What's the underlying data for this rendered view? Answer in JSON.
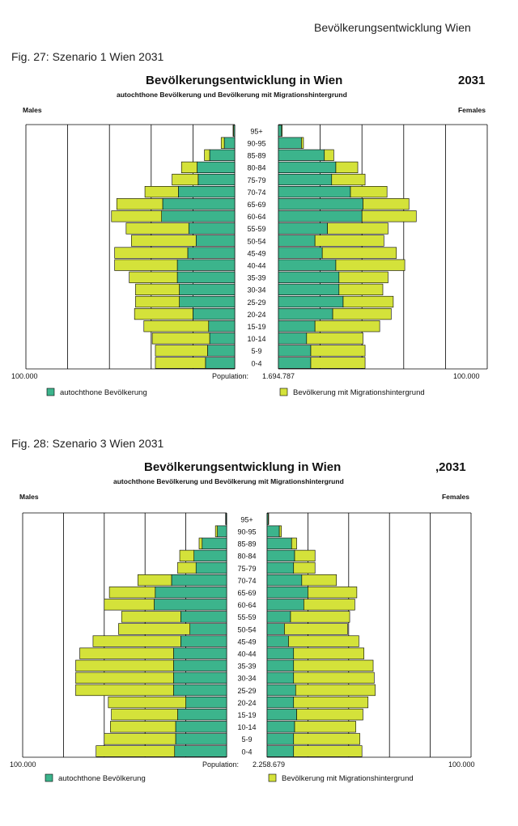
{
  "running_header": "Bevölkerungsentwicklung Wien",
  "colors": {
    "autochthon": "#3cb48c",
    "migration": "#d4e23a",
    "outline": "#000000",
    "gridline": "#000000"
  },
  "figures": [
    {
      "caption": "Fig.  27: Szenario 1 Wien  2031"
    },
    {
      "caption": "Fig.  28: Szenario 3 Wien 2031"
    }
  ],
  "chart_data": [
    {
      "type": "bar",
      "orientation": "horizontal",
      "chart_kind": "population pyramid",
      "title": "Bevölkerungsentwicklung in Wien",
      "year_label": "2031",
      "subtitle": "autochthone Bevölkerung und Bevölkerung mit Migrationshintergrund",
      "left_label": "Males",
      "right_label": "Females",
      "axis_left_label": "100.000",
      "axis_right_label": "100.000",
      "axis_max": 100000,
      "population_label": "Population:",
      "population_value": "1.694.787",
      "stacked": true,
      "grid": true,
      "legend_position": "bottom",
      "categories": [
        "95+",
        "90-95",
        "85-89",
        "80-84",
        "75-79",
        "70-74",
        "65-69",
        "60-64",
        "55-59",
        "50-54",
        "45-49",
        "40-44",
        "35-39",
        "30-34",
        "25-29",
        "20-24",
        "15-19",
        "10-14",
        "5-9",
        "0-4"
      ],
      "series": [
        {
          "name": "autochthone Bevölkerung",
          "males": [
            500,
            5000,
            12000,
            18000,
            17500,
            27000,
            34500,
            35000,
            22000,
            18500,
            22500,
            27500,
            27500,
            26500,
            26500,
            20000,
            12500,
            12000,
            13000,
            14000
          ],
          "females": [
            1500,
            11000,
            22000,
            27500,
            25500,
            34500,
            40500,
            40000,
            23500,
            17500,
            21000,
            27500,
            29000,
            29000,
            31000,
            26000,
            17500,
            13500,
            15500,
            15500
          ]
        },
        {
          "name": "Bevölkerung mit Migrationshintergrund",
          "males": [
            300,
            1500,
            2500,
            7500,
            12500,
            16000,
            22000,
            24000,
            30000,
            31000,
            35000,
            30000,
            23000,
            21000,
            21000,
            28000,
            31000,
            27500,
            25000,
            24000
          ],
          "females": [
            300,
            1000,
            4500,
            10500,
            16000,
            17500,
            22000,
            26000,
            29000,
            33000,
            35500,
            33000,
            23500,
            21000,
            24000,
            28000,
            31000,
            27000,
            26000,
            26000
          ]
        }
      ]
    },
    {
      "type": "bar",
      "orientation": "horizontal",
      "chart_kind": "population pyramid",
      "title": "Bevölkerungsentwicklung in Wien",
      "year_label": ",2031",
      "subtitle": "autochthone Bevölkerung und Bevölkerung mit Migrationshintergrund",
      "left_label": "Males",
      "right_label": "Females",
      "axis_left_label": "100.000",
      "axis_right_label": "100.000",
      "axis_max": 100000,
      "population_label": "Population:",
      "population_value": "2.258.679",
      "stacked": true,
      "grid": true,
      "legend_position": "bottom",
      "categories": [
        "95+",
        "90-95",
        "85-89",
        "80-84",
        "75-79",
        "70-74",
        "65-69",
        "60-64",
        "55-59",
        "50-54",
        "45-49",
        "40-44",
        "35-39",
        "30-34",
        "25-29",
        "20-24",
        "15-19",
        "10-14",
        "5-9",
        "0-4"
      ],
      "series": [
        {
          "name": "autochthone Bevölkerung",
          "males": [
            300,
            4500,
            12000,
            16000,
            15000,
            27000,
            35000,
            35500,
            22500,
            18000,
            22500,
            26000,
            26000,
            26000,
            26000,
            20000,
            24000,
            25000,
            25000,
            25500
          ],
          "females": [
            500,
            6000,
            12000,
            13500,
            13000,
            17000,
            20000,
            18000,
            11500,
            8500,
            10500,
            13000,
            13000,
            13000,
            14000,
            13000,
            14500,
            13500,
            13000,
            13000
          ]
        },
        {
          "name": "Bevölkerung mit Migrationshintergrund",
          "males": [
            200,
            1000,
            1500,
            7000,
            9000,
            16500,
            22500,
            24500,
            29000,
            35000,
            43000,
            46000,
            48000,
            48000,
            48000,
            38000,
            32500,
            32000,
            35000,
            38500
          ],
          "females": [
            300,
            1000,
            2500,
            10000,
            10500,
            17000,
            24000,
            25000,
            29000,
            31000,
            34500,
            34500,
            39000,
            39500,
            39000,
            36500,
            32500,
            30000,
            32500,
            33500
          ]
        }
      ]
    }
  ]
}
